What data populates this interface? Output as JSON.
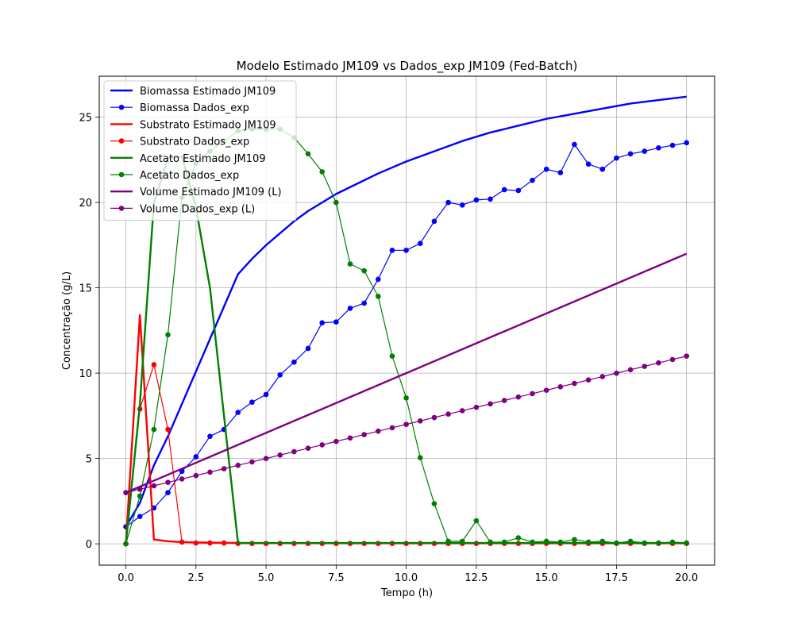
{
  "chart_data": {
    "type": "line",
    "title": "Modelo Estimado JM109 vs Dados_exp JM109 (Fed-Batch)",
    "xlabel": "Tempo (h)",
    "ylabel": "Concentração (g/L)",
    "xlim": [
      -0.95,
      21.0
    ],
    "ylim": [
      -1.25,
      27.4
    ],
    "xticks": [
      0.0,
      2.5,
      5.0,
      7.5,
      10.0,
      12.5,
      15.0,
      17.5,
      20.0
    ],
    "xtick_labels": [
      "0.0",
      "2.5",
      "5.0",
      "7.5",
      "10.0",
      "12.5",
      "15.0",
      "17.5",
      "20.0"
    ],
    "yticks": [
      0,
      5,
      10,
      15,
      20,
      25
    ],
    "ytick_labels": [
      "0",
      "5",
      "10",
      "15",
      "20",
      "25"
    ],
    "grid": true,
    "legend_position": "top-left",
    "series": [
      {
        "name": "Biomassa Estimado JM109",
        "color": "#0000ff",
        "style": "line",
        "x": [
          0,
          0.5,
          1,
          1.5,
          2,
          2.5,
          3,
          3.5,
          4,
          4.5,
          5,
          5.5,
          6,
          6.5,
          7,
          7.5,
          8,
          9,
          10,
          11,
          12,
          13,
          14,
          15,
          16,
          17,
          18,
          19,
          20
        ],
        "y": [
          1.0,
          2.4,
          4.6,
          6.3,
          8.2,
          10.1,
          12.0,
          13.9,
          15.8,
          16.7,
          17.5,
          18.2,
          18.9,
          19.5,
          20.0,
          20.5,
          20.9,
          21.7,
          22.4,
          23.0,
          23.6,
          24.1,
          24.5,
          24.9,
          25.2,
          25.5,
          25.8,
          26.0,
          26.2
        ]
      },
      {
        "name": "Biomassa Dados_exp",
        "color": "#0000ff",
        "style": "line-marker",
        "x": [
          0,
          0.5,
          1,
          1.5,
          2,
          2.5,
          3,
          3.5,
          4,
          4.5,
          5,
          5.5,
          6,
          6.5,
          7,
          7.5,
          8,
          8.5,
          9,
          9.5,
          10,
          10.5,
          11,
          11.5,
          12,
          12.5,
          13,
          13.5,
          14,
          14.5,
          15,
          15.5,
          16,
          16.5,
          17,
          17.5,
          18,
          18.5,
          19,
          19.5,
          20
        ],
        "y": [
          1.0,
          1.6,
          2.1,
          3.0,
          4.25,
          5.1,
          6.3,
          6.7,
          7.7,
          8.3,
          8.75,
          9.9,
          10.65,
          11.45,
          12.95,
          13.0,
          13.8,
          14.1,
          15.5,
          17.2,
          17.2,
          17.6,
          18.9,
          20.0,
          19.85,
          20.15,
          20.2,
          20.75,
          20.7,
          21.3,
          21.95,
          21.75,
          23.4,
          22.25,
          21.95,
          22.6,
          22.85,
          23.0,
          23.2,
          23.35,
          23.5
        ]
      },
      {
        "name": "Substrato Estimado JM109",
        "color": "#ff0000",
        "style": "line",
        "x": [
          0,
          0.5,
          1,
          1.5,
          2,
          2.5,
          3,
          3.5,
          4,
          5,
          6,
          8,
          10,
          12,
          14,
          16,
          18,
          20
        ],
        "y": [
          0.0,
          13.4,
          0.25,
          0.15,
          0.1,
          0.08,
          0.07,
          0.06,
          0.05,
          0.04,
          0.04,
          0.03,
          0.03,
          0.03,
          0.03,
          0.03,
          0.03,
          0.03
        ]
      },
      {
        "name": "Substrato Dados_exp",
        "color": "#ff0000",
        "style": "line-marker",
        "x": [
          0,
          0.5,
          1,
          1.5,
          2,
          2.5,
          3,
          3.5,
          4,
          4.5,
          5,
          5.5,
          6,
          6.5,
          7,
          7.5,
          8,
          8.5,
          9,
          9.5,
          10,
          10.5,
          11,
          11.5,
          12,
          12.5,
          13,
          13.5,
          14,
          14.5,
          15,
          15.5,
          16,
          16.5,
          17,
          17.5,
          18,
          18.5,
          19,
          19.5,
          20
        ],
        "y": [
          0.0,
          7.9,
          10.5,
          6.7,
          0.1,
          0.05,
          0.05,
          0.05,
          0.02,
          0.02,
          0.02,
          0.02,
          0.02,
          0.02,
          0.02,
          0.02,
          0.02,
          0.02,
          0.02,
          0.02,
          0.02,
          0.02,
          0.02,
          0.02,
          0.02,
          0.02,
          0.02,
          0.02,
          0.02,
          0.02,
          0.02,
          0.02,
          0.02,
          0.02,
          0.02,
          0.02,
          0.02,
          0.02,
          0.02,
          0.02,
          0.02
        ]
      },
      {
        "name": "Acetato Estimado JM109",
        "color": "#008000",
        "style": "line",
        "x": [
          0,
          0.5,
          1,
          1.5,
          2,
          2.5,
          3,
          3.5,
          4,
          5,
          6,
          8,
          10,
          12,
          14,
          16,
          18,
          20
        ],
        "y": [
          0.0,
          8.2,
          20.0,
          22.6,
          22.7,
          19.7,
          15.0,
          7.5,
          0.05,
          0.05,
          0.05,
          0.05,
          0.05,
          0.05,
          0.05,
          0.05,
          0.05,
          0.05
        ]
      },
      {
        "name": "Acetato Dados_exp",
        "color": "#008000",
        "style": "line-marker",
        "x": [
          0,
          0.5,
          1,
          1.5,
          2,
          2.5,
          3,
          3.5,
          4,
          4.5,
          5,
          5.5,
          6,
          6.5,
          7,
          7.5,
          8,
          8.5,
          9,
          9.5,
          10,
          10.5,
          11,
          11.5,
          12,
          12.5,
          13,
          13.5,
          14,
          14.5,
          15,
          15.5,
          16,
          16.5,
          17,
          17.5,
          18,
          18.5,
          19,
          19.5,
          20
        ],
        "y": [
          0.0,
          2.8,
          6.7,
          12.25,
          20.3,
          22.3,
          23.0,
          23.6,
          24.2,
          24.3,
          24.3,
          24.3,
          23.8,
          22.85,
          21.8,
          20.0,
          16.4,
          16.0,
          14.5,
          11.0,
          8.55,
          5.05,
          2.35,
          0.15,
          0.15,
          1.35,
          0.1,
          0.1,
          0.35,
          0.1,
          0.15,
          0.1,
          0.25,
          0.1,
          0.15,
          0.05,
          0.15,
          0.05,
          0.05,
          0.1,
          0.05
        ]
      },
      {
        "name": "Volume Estimado JM109 (L)",
        "color": "#800080",
        "style": "line",
        "x": [
          0,
          20
        ],
        "y": [
          3.0,
          17.0
        ]
      },
      {
        "name": "Volume Dados_exp (L)",
        "color": "#800080",
        "style": "line-marker",
        "x": [
          0,
          0.5,
          1,
          1.5,
          2,
          2.5,
          3,
          3.5,
          4,
          4.5,
          5,
          5.5,
          6,
          6.5,
          7,
          7.5,
          8,
          8.5,
          9,
          9.5,
          10,
          10.5,
          11,
          11.5,
          12,
          12.5,
          13,
          13.5,
          14,
          14.5,
          15,
          15.5,
          16,
          16.5,
          17,
          17.5,
          18,
          18.5,
          19,
          19.5,
          20
        ],
        "y": [
          3.0,
          3.2,
          3.4,
          3.6,
          3.8,
          4.0,
          4.2,
          4.4,
          4.6,
          4.8,
          5.0,
          5.2,
          5.4,
          5.6,
          5.8,
          6.0,
          6.2,
          6.4,
          6.6,
          6.8,
          7.0,
          7.2,
          7.4,
          7.6,
          7.8,
          8.0,
          8.2,
          8.4,
          8.6,
          8.8,
          9.0,
          9.2,
          9.4,
          9.6,
          9.8,
          10.0,
          10.2,
          10.4,
          10.6,
          10.8,
          11.0
        ]
      }
    ]
  }
}
